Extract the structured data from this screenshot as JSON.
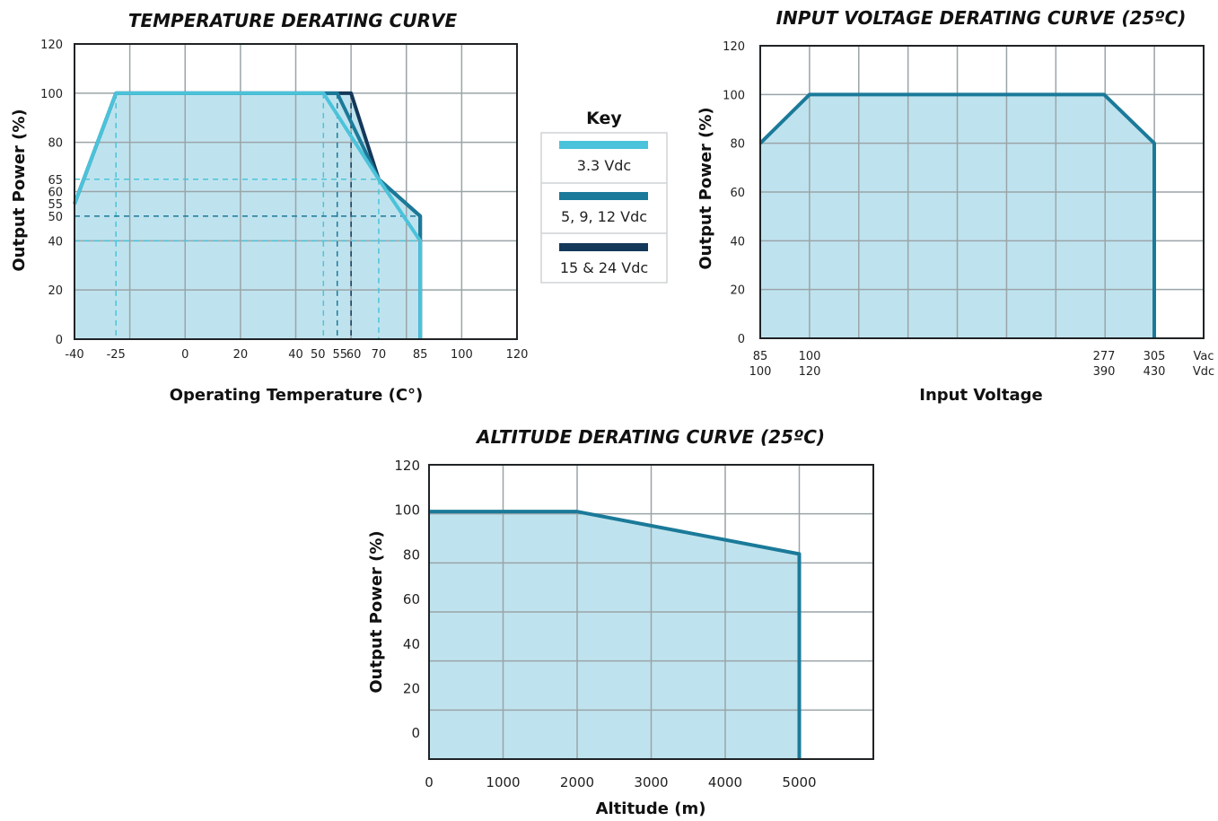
{
  "colors": {
    "fill": "#bfe3ee",
    "grid": "#9aa4a8",
    "frame": "#1f2326",
    "series_33": "#4bc3da",
    "series_5912": "#1b7a99",
    "series_1524": "#14385a"
  },
  "key": {
    "title": "Key",
    "items": [
      {
        "label": "3.3 Vdc",
        "color": "#4bc3da"
      },
      {
        "label": "5, 9, 12 Vdc",
        "color": "#1b7a99"
      },
      {
        "label": "15 & 24 Vdc",
        "color": "#14385a"
      }
    ]
  },
  "chart_data": [
    {
      "type": "area",
      "title": "TEMPERATURE DERATING CURVE",
      "xlabel": "Operating Temperature (C°)",
      "ylabel": "Output Power (%)",
      "xlim": [
        -40,
        120
      ],
      "ylim": [
        0,
        120
      ],
      "x_ticks": [
        -40,
        -25,
        0,
        20,
        40,
        50,
        55,
        60,
        70,
        85,
        100,
        120
      ],
      "x_tick_labels": [
        "-40",
        "-25",
        "0",
        "20",
        "40",
        "50",
        "55",
        "60",
        "70",
        "85",
        "100",
        "120"
      ],
      "x_grid": [
        -40,
        -20,
        0,
        20,
        40,
        60,
        80,
        100,
        120
      ],
      "y_ticks": [
        0,
        20,
        40,
        50,
        55,
        60,
        65,
        80,
        100,
        120
      ],
      "y_tick_labels": [
        "0",
        "20",
        "40",
        "50",
        "55",
        "60",
        "65",
        "80",
        "100",
        "120"
      ],
      "y_grid": [
        0,
        20,
        40,
        60,
        80,
        100,
        120
      ],
      "grid": true,
      "legend": "right",
      "series": [
        {
          "name": "15 & 24 Vdc",
          "x": [
            -40,
            -25,
            60,
            70,
            85,
            85
          ],
          "y": [
            55,
            100,
            100,
            65,
            50,
            0
          ]
        },
        {
          "name": "5, 9, 12 Vdc",
          "x": [
            -40,
            -25,
            55,
            70,
            85,
            85
          ],
          "y": [
            55,
            100,
            100,
            65,
            50,
            0
          ]
        },
        {
          "name": "3.3 Vdc",
          "x": [
            -40,
            -25,
            50,
            70,
            85,
            85
          ],
          "y": [
            55,
            100,
            100,
            65,
            40,
            0
          ]
        }
      ],
      "reference_lines": [
        {
          "x": -25,
          "to_y": 100
        },
        {
          "x": 50,
          "to_y": 100
        },
        {
          "x": 55,
          "to_y": 100
        },
        {
          "x": 60,
          "to_y": 100
        },
        {
          "x": 70,
          "to_y": 65
        },
        {
          "y": 65,
          "from_x": -40,
          "to_x": 70
        },
        {
          "y": 50,
          "from_x": -40,
          "to_x": 85
        },
        {
          "y": 40,
          "from_x": -40,
          "to_x": 85
        }
      ]
    },
    {
      "type": "area",
      "title": "INPUT VOLTAGE DERATING CURVE (25ºC)",
      "xlabel": "Input Voltage",
      "ylabel": "Output Power (%)",
      "ylim": [
        0,
        120
      ],
      "y_ticks": [
        0,
        20,
        40,
        60,
        80,
        100,
        120
      ],
      "x_tick_labels_vac": [
        "85",
        "100",
        "277",
        "305",
        "Vac"
      ],
      "x_tick_labels_vdc": [
        "100",
        "120",
        "390",
        "430",
        "Vdc"
      ],
      "grid": true,
      "series": [
        {
          "x_vac": [
            85,
            100,
            277,
            305,
            305
          ],
          "y": [
            80,
            100,
            100,
            80,
            0
          ]
        }
      ]
    },
    {
      "type": "area",
      "title": "ALTITUDE DERATING CURVE (25ºC)",
      "xlabel": "Altitude (m)",
      "ylabel": "Output Power (%)",
      "xlim": [
        0,
        6000
      ],
      "ylim": [
        -12,
        120
      ],
      "x_ticks": [
        0,
        1000,
        2000,
        3000,
        4000,
        5000
      ],
      "y_ticks": [
        0,
        20,
        40,
        60,
        80,
        100,
        120
      ],
      "grid": true,
      "series": [
        {
          "x": [
            0,
            2000,
            5000,
            5000
          ],
          "y": [
            99,
            99,
            80,
            -12
          ]
        }
      ]
    }
  ]
}
